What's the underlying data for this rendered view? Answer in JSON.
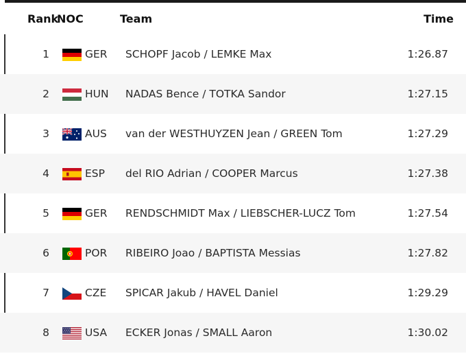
{
  "header": {
    "rank": "Rank",
    "noc": "NOC",
    "team": "Team",
    "time": "Time"
  },
  "rows": [
    {
      "rank": "1",
      "noc": "GER",
      "team": "SCHOPF Jacob / LEMKE Max",
      "time": "1:26.87",
      "flag": "germany-flag-icon"
    },
    {
      "rank": "2",
      "noc": "HUN",
      "team": "NADAS Bence / TOTKA Sandor",
      "time": "1:27.15",
      "flag": "hungary-flag-icon"
    },
    {
      "rank": "3",
      "noc": "AUS",
      "team": "van der WESTHUYZEN Jean / GREEN Tom",
      "time": "1:27.29",
      "flag": "australia-flag-icon"
    },
    {
      "rank": "4",
      "noc": "ESP",
      "team": "del RIO Adrian / COOPER Marcus",
      "time": "1:27.38",
      "flag": "spain-flag-icon"
    },
    {
      "rank": "5",
      "noc": "GER",
      "team": "RENDSCHMIDT Max / LIEBSCHER-LUCZ Tom",
      "time": "1:27.54",
      "flag": "germany-flag-icon"
    },
    {
      "rank": "6",
      "noc": "POR",
      "team": "RIBEIRO Joao / BAPTISTA Messias",
      "time": "1:27.82",
      "flag": "portugal-flag-icon"
    },
    {
      "rank": "7",
      "noc": "CZE",
      "team": "SPICAR Jakub / HAVEL Daniel",
      "time": "1:29.29",
      "flag": "czechia-flag-icon"
    },
    {
      "rank": "8",
      "noc": "USA",
      "team": "ECKER Jonas / SMALL Aaron",
      "time": "1:30.02",
      "flag": "usa-flag-icon"
    }
  ],
  "colors": {
    "row_alt_bg": "#f6f6f6",
    "text": "#2a2a2a",
    "header_text": "#111111"
  }
}
